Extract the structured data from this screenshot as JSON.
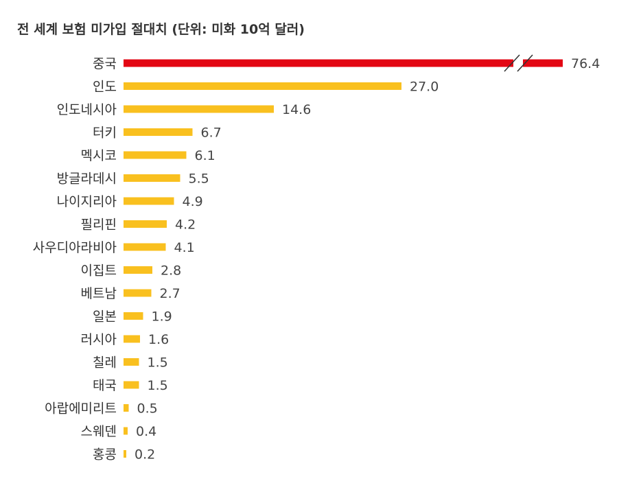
{
  "chart_data": {
    "type": "bar",
    "orientation": "horizontal",
    "title": "전 세계 보험 미가입 절대치 (단위: 미화 10억 달러)",
    "categories": [
      "중국",
      "인도",
      "인도네시아",
      "터키",
      "멕시코",
      "방글라데시",
      "나이지리아",
      "필리핀",
      "사우디아라비아",
      "이집트",
      "베트남",
      "일본",
      "러시아",
      "칠레",
      "태국",
      "아랍에미리트",
      "스웨덴",
      "홍콩"
    ],
    "values": [
      76.4,
      27.0,
      14.6,
      6.7,
      6.1,
      5.5,
      4.9,
      4.2,
      4.1,
      2.8,
      2.7,
      1.9,
      1.6,
      1.5,
      1.5,
      0.5,
      0.4,
      0.2
    ],
    "value_labels": [
      "76.4",
      "27.0",
      "14.6",
      "6.7",
      "6.1",
      "5.5",
      "4.9",
      "4.2",
      "4.1",
      "2.8",
      "2.7",
      "1.9",
      "1.6",
      "1.5",
      "1.5",
      "0.5",
      "0.4",
      "0.2"
    ],
    "axis_break": true,
    "broken_category": "중국",
    "highlight_category": "중국",
    "grid": false,
    "legend": "none",
    "colors": {
      "highlight": "#e30613",
      "bar": "#f9c01f",
      "text": "#333333",
      "break_mark": "#333333"
    }
  }
}
